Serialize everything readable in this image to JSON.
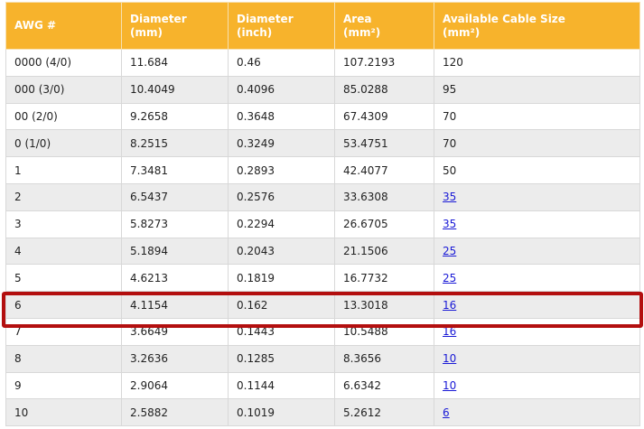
{
  "table": {
    "headers": [
      {
        "line1": "AWG #",
        "line2": ""
      },
      {
        "line1": "Diameter",
        "line2": "(mm)"
      },
      {
        "line1": "Diameter",
        "line2": "(inch)"
      },
      {
        "line1": "Area",
        "line2": "(mm²)"
      },
      {
        "line1": "Available Cable Size",
        "line2": "(mm²)"
      }
    ],
    "rows": [
      {
        "awg": "0000 (4/0)",
        "dia_mm": "11.684",
        "dia_inch": "0.46",
        "area": "107.2193",
        "cable": "120",
        "cable_link": false
      },
      {
        "awg": "000 (3/0)",
        "dia_mm": "10.4049",
        "dia_inch": "0.4096",
        "area": "85.0288",
        "cable": "95",
        "cable_link": false
      },
      {
        "awg": "00 (2/0)",
        "dia_mm": "9.2658",
        "dia_inch": "0.3648",
        "area": "67.4309",
        "cable": "70",
        "cable_link": false
      },
      {
        "awg": "0 (1/0)",
        "dia_mm": "8.2515",
        "dia_inch": "0.3249",
        "area": "53.4751",
        "cable": "70",
        "cable_link": false
      },
      {
        "awg": "1",
        "dia_mm": "7.3481",
        "dia_inch": "0.2893",
        "area": "42.4077",
        "cable": "50",
        "cable_link": false
      },
      {
        "awg": "2",
        "dia_mm": "6.5437",
        "dia_inch": "0.2576",
        "area": "33.6308",
        "cable": "35",
        "cable_link": true
      },
      {
        "awg": "3",
        "dia_mm": "5.8273",
        "dia_inch": "0.2294",
        "area": "26.6705",
        "cable": "35",
        "cable_link": true
      },
      {
        "awg": "4",
        "dia_mm": "5.1894",
        "dia_inch": "0.2043",
        "area": "21.1506",
        "cable": "25",
        "cable_link": true
      },
      {
        "awg": "5",
        "dia_mm": "4.6213",
        "dia_inch": "0.1819",
        "area": "16.7732",
        "cable": "25",
        "cable_link": true
      },
      {
        "awg": "6",
        "dia_mm": "4.1154",
        "dia_inch": "0.162",
        "area": "13.3018",
        "cable": "16",
        "cable_link": true
      },
      {
        "awg": "7",
        "dia_mm": "3.6649",
        "dia_inch": "0.1443",
        "area": "10.5488",
        "cable": "16",
        "cable_link": true
      },
      {
        "awg": "8",
        "dia_mm": "3.2636",
        "dia_inch": "0.1285",
        "area": "8.3656",
        "cable": "10",
        "cable_link": true
      },
      {
        "awg": "9",
        "dia_mm": "2.9064",
        "dia_inch": "0.1144",
        "area": "6.6342",
        "cable": "10",
        "cable_link": true
      },
      {
        "awg": "10",
        "dia_mm": "2.5882",
        "dia_inch": "0.1019",
        "area": "5.2612",
        "cable": "6",
        "cable_link": true
      }
    ]
  },
  "highlight": {
    "row_awg": "6",
    "color": "#b30f0f"
  },
  "colors": {
    "header_bg": "#f7b32c",
    "header_text": "#ffffff",
    "link": "#1a1ad6",
    "stripe": "#ececec"
  }
}
